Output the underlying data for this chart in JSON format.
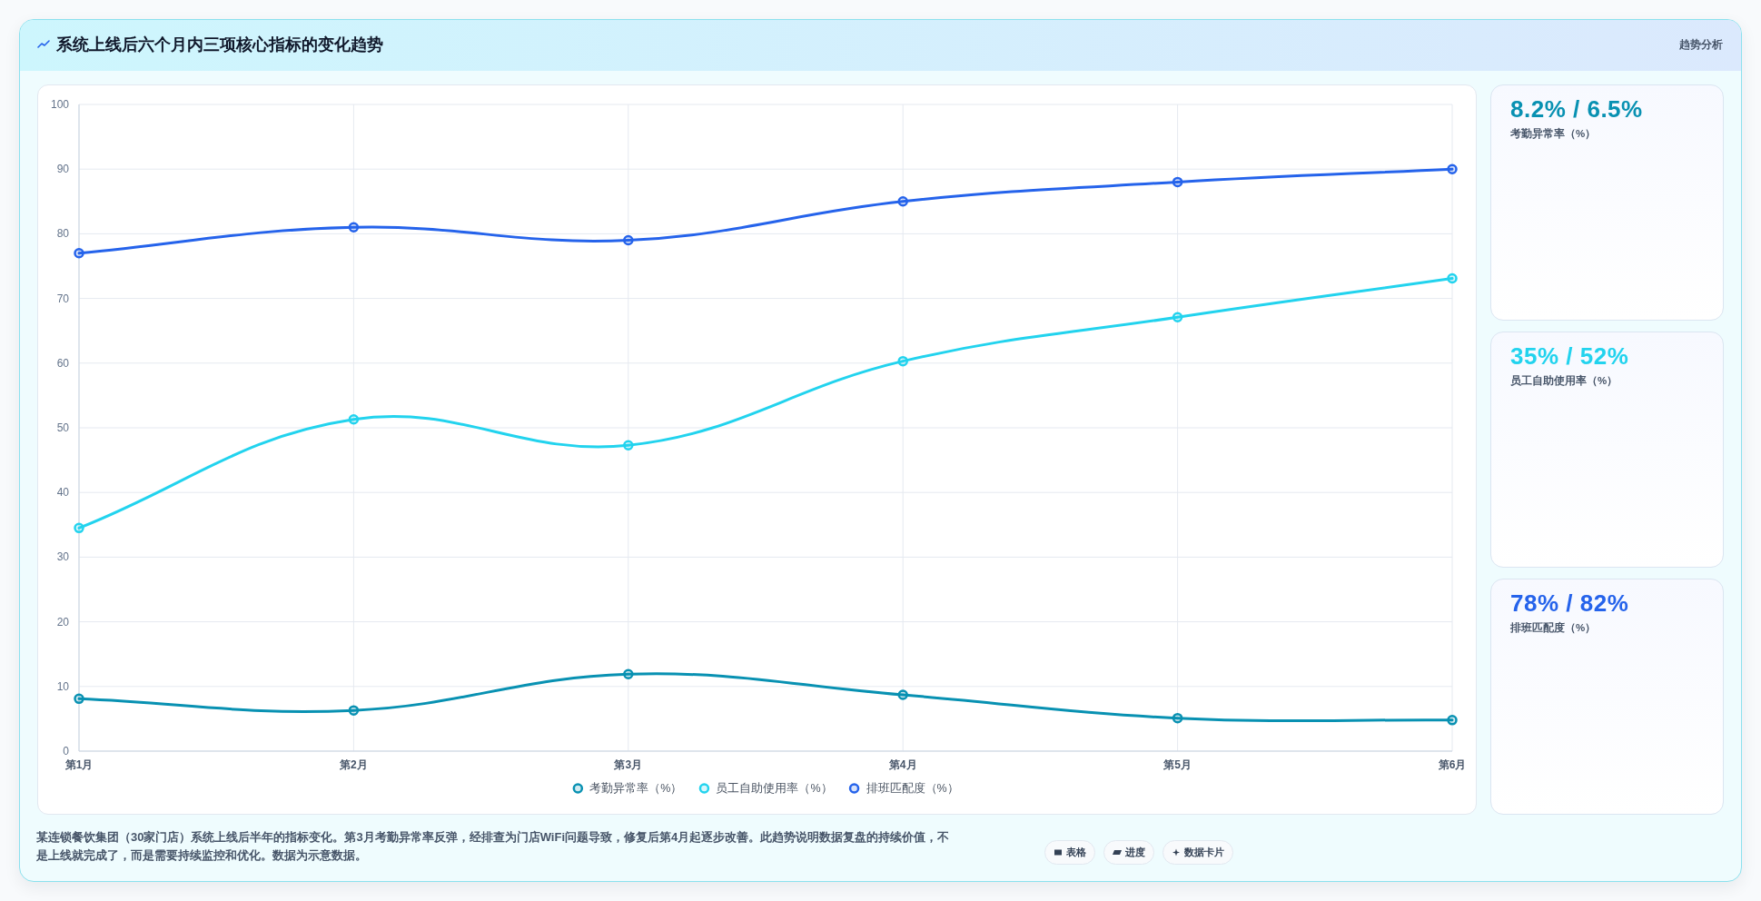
{
  "chart_data": [
    {
      "type": "other",
      "title": "系统上线后六个月内三项核心指标的变化趋势",
      "subtitle": "趋势分析"
    },
    {
      "type": "line",
      "categories": [
        "第1月",
        "第2月",
        "第3月",
        "第4月",
        "第5月",
        "第6月"
      ],
      "series": [
        {
          "name": "考勤异常率（%）",
          "color": "#0891b2",
          "values": [
            8.1,
            6.3,
            11.9,
            8.7,
            5.1,
            4.8
          ]
        },
        {
          "name": "员工自助使用率（%）",
          "color": "#22d3ee",
          "values": [
            34.5,
            51.3,
            47.3,
            60.3,
            67.1,
            73.1
          ]
        },
        {
          "name": "排班匹配度（%）",
          "color": "#2563eb",
          "values": [
            77,
            81,
            79,
            85,
            88,
            90
          ]
        }
      ],
      "ylim": [
        0,
        100
      ],
      "yticks": [
        0,
        10,
        20,
        30,
        40,
        50,
        60,
        70,
        80,
        90,
        100
      ],
      "grid": true,
      "legend": "bottom",
      "marker": "circle",
      "line_style": "solid",
      "annotations": [
        "某连锁餐饮集团（30家门店）系统上线后半年的指标变化。第3月考勤异常率反弹，经排查为门店WiFi问题导致，修复后第4月起逐步改善。此趋势说明数据复盘的持续价值，不是上线就完成了，而是需要持续监控和优化。数据为示意数据。",
        "表格",
        "进度",
        "数据卡片"
      ]
    },
    {
      "type": "other",
      "title": "8.2% / 6.5%",
      "subtitle": "考勤异常率（%）"
    },
    {
      "type": "other",
      "title": "35% / 52%",
      "subtitle": "员工自助使用率（%）"
    },
    {
      "type": "other",
      "title": "78% / 82%",
      "subtitle": "排班匹配度（%）"
    }
  ]
}
